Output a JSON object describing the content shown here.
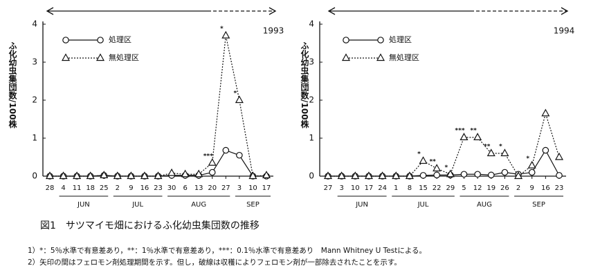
{
  "chart_data": [
    {
      "type": "line",
      "year": "1993",
      "y_label": "ふ化幼虫集団数/100株",
      "categories": [
        "28",
        "4",
        "11",
        "18",
        "25",
        "2",
        "9",
        "16",
        "23",
        "30",
        "6",
        "13",
        "20",
        "27",
        "3",
        "10",
        "17"
      ],
      "months": [
        "JUN",
        "JUL",
        "AUG",
        "SEP"
      ],
      "ylim": [
        0,
        4
      ],
      "yticks": [
        0,
        1,
        2,
        3,
        4
      ],
      "series": [
        {
          "name": "処理区",
          "marker": "circle",
          "style": "solid",
          "color": "#111",
          "values": [
            0,
            0,
            0,
            0,
            0.02,
            0,
            0,
            0,
            0,
            0.02,
            0.02,
            0.02,
            0.1,
            0.68,
            0.55,
            0,
            0
          ]
        },
        {
          "name": "無処理区",
          "marker": "triangle",
          "style": "dotted",
          "color": "#111",
          "values": [
            0,
            0,
            0,
            0,
            0.02,
            0,
            0,
            0,
            0,
            0.08,
            0.05,
            0.05,
            0.35,
            3.7,
            2.0,
            0,
            0.02
          ],
          "labels": [
            null,
            null,
            null,
            null,
            null,
            null,
            null,
            null,
            null,
            null,
            null,
            null,
            "***",
            "*",
            "*",
            null,
            null
          ]
        }
      ]
    },
    {
      "type": "line",
      "year": "1994",
      "y_label": "ふ化幼虫集団数/100株",
      "categories": [
        "27",
        "3",
        "10",
        "17",
        "24",
        "1",
        "8",
        "15",
        "22",
        "29",
        "5",
        "12",
        "19",
        "26",
        "2",
        "9",
        "16",
        "23"
      ],
      "months": [
        "JUN",
        "JUL",
        "AUG",
        "SEP"
      ],
      "ylim": [
        0,
        4
      ],
      "yticks": [
        0,
        1,
        2,
        3,
        4
      ],
      "series": [
        {
          "name": "処理区",
          "marker": "circle",
          "style": "solid",
          "color": "#111",
          "values": [
            0,
            0,
            0,
            0,
            0,
            0,
            0,
            0.02,
            0.03,
            0.03,
            0.05,
            0.05,
            0.03,
            0.1,
            0.05,
            0.1,
            0.68,
            0.02
          ]
        },
        {
          "name": "無処理区",
          "marker": "triangle",
          "style": "dotted",
          "color": "#111",
          "values": [
            0,
            0,
            0,
            0,
            0,
            0,
            0,
            0.4,
            0.2,
            0.05,
            1.02,
            1.02,
            0.6,
            0.6,
            0,
            0.28,
            1.65,
            0.5
          ],
          "labels": [
            null,
            null,
            null,
            null,
            null,
            null,
            null,
            "*",
            "**",
            "*",
            "***",
            "**",
            "**",
            "*",
            null,
            "*",
            null,
            null
          ]
        }
      ]
    }
  ],
  "caption": "図1　サツマイモ畑におけるふ化幼虫集団数の推移",
  "notes": [
    "1）*：5％水準で有意差あり，**：1％水準で有意差あり，***：0.1％水準で有意差あり　Mann Whitney U Testによる。",
    "2）矢印の間はフェロモン剤処理期間を示す。但し，破線は収穫によりフェロモン剤が一部除去されたことを示す。"
  ]
}
